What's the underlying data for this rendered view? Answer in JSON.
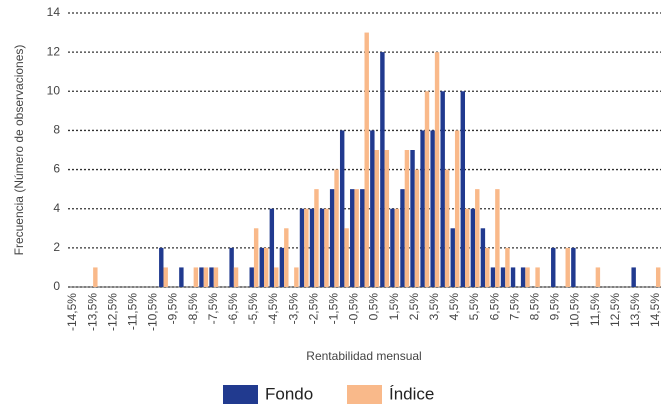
{
  "chart_data": {
    "type": "bar",
    "y_label": "Frecuencia (Número de observaciones)",
    "x_label": "Rentabilidad mensual",
    "categories": [
      "-14,5%",
      null,
      "-13,5%",
      null,
      "-12,5%",
      null,
      "-11,5%",
      null,
      "-10,5%",
      null,
      "-9,5%",
      null,
      "-8,5%",
      null,
      "-7,5%",
      null,
      "-6,5%",
      null,
      "-5,5%",
      null,
      "-4,5%",
      null,
      "-3,5%",
      null,
      "-2,5%",
      null,
      "-1,5%",
      null,
      "-0,5%",
      null,
      "0,5%",
      null,
      "1,5%",
      null,
      "2,5%",
      null,
      "3,5%",
      null,
      "4,5%",
      null,
      "5,5%",
      null,
      "6,5%",
      null,
      "7,5%",
      null,
      "8,5%",
      null,
      "9,5%",
      null,
      "10,5%",
      null,
      "11,5%",
      null,
      "12,5%",
      null,
      "13,5%",
      null,
      "14,5%"
    ],
    "series": [
      {
        "name": "Fondo",
        "color": "#213a8f",
        "values": [
          0,
          0,
          0,
          0,
          0,
          0,
          0,
          0,
          0,
          2,
          0,
          1,
          0,
          1,
          1,
          0,
          2,
          0,
          1,
          2,
          4,
          2,
          0,
          4,
          4,
          4,
          5,
          8,
          5,
          5,
          8,
          12,
          4,
          5,
          7,
          8,
          8,
          10,
          3,
          10,
          4,
          3,
          1,
          1,
          1,
          1,
          0,
          0,
          2,
          0,
          2,
          0,
          0,
          0,
          0,
          0,
          1,
          0,
          0
        ]
      },
      {
        "name": "Índice",
        "color": "#f9b98a",
        "values": [
          0,
          0,
          1,
          0,
          0,
          0,
          0,
          0,
          0,
          1,
          0,
          0,
          1,
          1,
          1,
          0,
          1,
          0,
          3,
          2,
          1,
          3,
          1,
          4,
          5,
          4,
          6,
          3,
          5,
          13,
          7,
          7,
          4,
          7,
          6,
          10,
          12,
          6,
          8,
          4,
          5,
          2,
          5,
          2,
          0,
          1,
          1,
          0,
          0,
          2,
          0,
          0,
          1,
          0,
          0,
          0,
          0,
          0,
          1
        ]
      }
    ],
    "ylim": [
      0,
      14
    ],
    "yticks": [
      0,
      2,
      4,
      6,
      8,
      10,
      12,
      14
    ],
    "grid": true
  }
}
